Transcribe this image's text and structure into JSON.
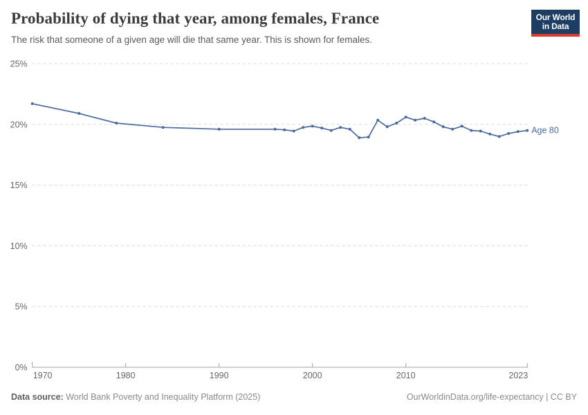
{
  "header": {
    "title": "Probability of dying that year, among females, France",
    "subtitle": "The risk that someone of a given age will die that same year. This is shown for females.",
    "logo": {
      "line1": "Our World",
      "line2": "in Data"
    }
  },
  "chart_data": {
    "type": "line",
    "title": "Probability of dying that year, among females, France",
    "xlabel": "",
    "ylabel": "",
    "x_range": [
      1970,
      2023
    ],
    "ylim": [
      0,
      25
    ],
    "grid": "horizontal-dashed",
    "legend_position": "end-of-line",
    "yticks": [
      {
        "value": 0,
        "label": "0%"
      },
      {
        "value": 5,
        "label": "5%"
      },
      {
        "value": 10,
        "label": "10%"
      },
      {
        "value": 15,
        "label": "15%"
      },
      {
        "value": 20,
        "label": "20%"
      },
      {
        "value": 25,
        "label": "25%"
      }
    ],
    "xticks": [
      {
        "value": 1970,
        "label": "1970"
      },
      {
        "value": 1980,
        "label": "1980"
      },
      {
        "value": 1990,
        "label": "1990"
      },
      {
        "value": 2000,
        "label": "2000"
      },
      {
        "value": 2010,
        "label": "2010"
      },
      {
        "value": 2023,
        "label": "2023"
      }
    ],
    "series": [
      {
        "name": "Age 80",
        "color": "#4C6A9C",
        "x": [
          1970,
          1975,
          1979,
          1984,
          1990,
          1996,
          1997,
          1998,
          1999,
          2000,
          2001,
          2002,
          2003,
          2004,
          2005,
          2006,
          2007,
          2008,
          2009,
          2010,
          2011,
          2012,
          2013,
          2014,
          2015,
          2016,
          2017,
          2018,
          2019,
          2020,
          2021,
          2022,
          2023
        ],
        "values": [
          21.7,
          20.9,
          20.1,
          19.75,
          19.6,
          19.6,
          19.55,
          19.45,
          19.75,
          19.85,
          19.7,
          19.5,
          19.75,
          19.6,
          18.9,
          18.95,
          20.35,
          19.8,
          20.1,
          20.6,
          20.35,
          20.5,
          20.2,
          19.8,
          19.6,
          19.85,
          19.5,
          19.45,
          19.2,
          19.0,
          19.25,
          19.4,
          19.5
        ]
      }
    ]
  },
  "footer": {
    "source_label": "Data source:",
    "source_text": " World Bank Poverty and Inequality Platform (2025)",
    "right_text": "OurWorldinData.org/life-expectancy | CC BY"
  },
  "colors": {
    "line": "#4C6A9C",
    "grid": "#d8d8d8",
    "axis": "#a0a0a0",
    "tick_label": "#666666",
    "logo_bg": "#1d3d63",
    "logo_red": "#dc3a2d"
  }
}
